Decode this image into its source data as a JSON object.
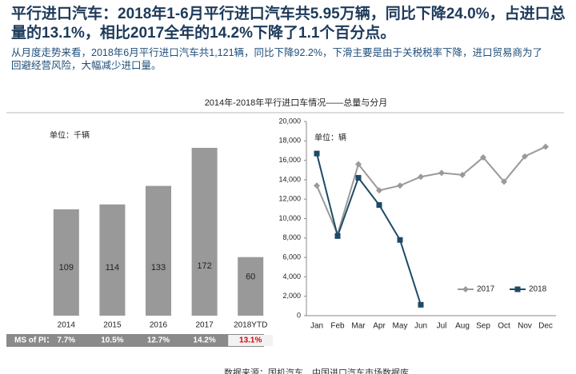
{
  "header": {
    "title": "平行进口汽车：2018年1-6月平行进口汽车共5.95万辆，同比下降24.0%，占进口总量的13.1%，相比2017全年的14.2%下降了1.1个百分点。",
    "subtitle": "从月度走势来看，2018年6月平行进口汽车共1,121辆，同比下降92.2%，下滑主要是由于关税税率下降，进口贸易商为了回避经营风险，大幅减少进口量。",
    "chart_title": "2014年-2018年平行进口车情况——总量与分月",
    "source": "数据来源：国机汽车、中国进口汽车市场数据库"
  },
  "chart_data": [
    {
      "type": "bar",
      "unit_label": "单位：千辆",
      "color": "#999999",
      "categories": [
        "2014",
        "2015",
        "2016",
        "2017",
        "2018YTD"
      ],
      "values": [
        109,
        114,
        133,
        172,
        60
      ],
      "ms_row": {
        "label": "MS of PI：",
        "values": [
          "7.7%",
          "10.5%",
          "12.7%",
          "14.2%",
          "13.1%"
        ],
        "highlight": 4,
        "highlight_color": "#e00000"
      }
    },
    {
      "type": "line",
      "unit_label": "单位：辆",
      "categories": [
        "Jan",
        "Feb",
        "Mar",
        "Apr",
        "May",
        "Jun",
        "Jul",
        "Aug",
        "Sep",
        "Oct",
        "Nov",
        "Dec"
      ],
      "ylim": [
        0,
        20000
      ],
      "yticks": [
        {
          "value": 0,
          "label": "0"
        },
        {
          "value": 2000,
          "label": "2,000"
        },
        {
          "value": 4000,
          "label": "4,000"
        },
        {
          "value": 6000,
          "label": "6,000"
        },
        {
          "value": 8000,
          "label": "8,000"
        },
        {
          "value": 10000,
          "label": "10,000"
        },
        {
          "value": 12000,
          "label": "12,000"
        },
        {
          "value": 14000,
          "label": "14,000"
        },
        {
          "value": 16000,
          "label": "16,000"
        },
        {
          "value": 18000,
          "label": "18,000"
        },
        {
          "value": 20000,
          "label": "20,000"
        }
      ],
      "series": [
        {
          "name": "2017",
          "color": "#9a9a9a",
          "marker": "diamond",
          "values": [
            13400,
            8400,
            15600,
            12900,
            13400,
            14300,
            14700,
            14500,
            16300,
            13800,
            16400,
            17400
          ]
        },
        {
          "name": "2018",
          "color": "#1e4a66",
          "marker": "square",
          "values": [
            16700,
            8200,
            14200,
            11400,
            7800,
            1121,
            null,
            null,
            null,
            null,
            null,
            null
          ]
        }
      ]
    }
  ]
}
